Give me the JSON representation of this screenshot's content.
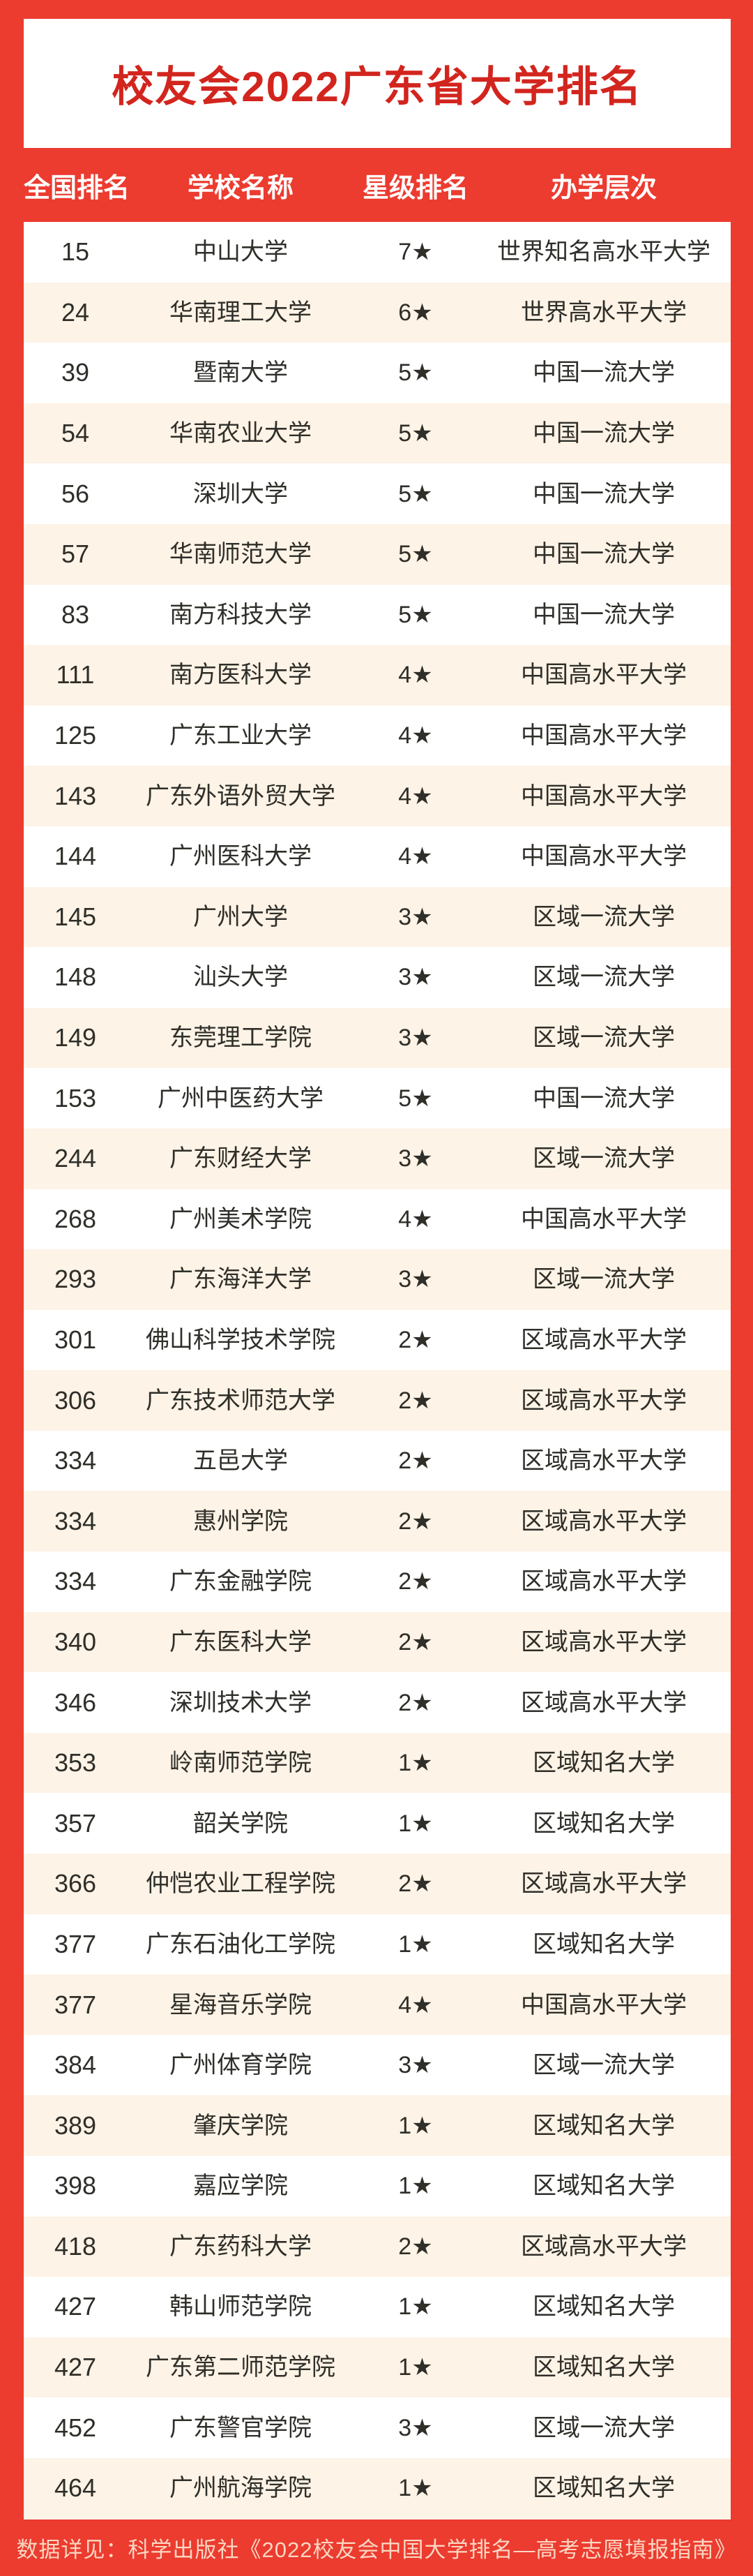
{
  "title": "校友会2022广东省大学排名",
  "table": {
    "headers": [
      "全国排名",
      "学校名称",
      "星级排名",
      "办学层次"
    ],
    "rows": [
      {
        "rank": "15",
        "school": "中山大学",
        "star": "7★",
        "level": "世界知名高水平大学"
      },
      {
        "rank": "24",
        "school": "华南理工大学",
        "star": "6★",
        "level": "世界高水平大学"
      },
      {
        "rank": "39",
        "school": "暨南大学",
        "star": "5★",
        "level": "中国一流大学"
      },
      {
        "rank": "54",
        "school": "华南农业大学",
        "star": "5★",
        "level": "中国一流大学"
      },
      {
        "rank": "56",
        "school": "深圳大学",
        "star": "5★",
        "level": "中国一流大学"
      },
      {
        "rank": "57",
        "school": "华南师范大学",
        "star": "5★",
        "level": "中国一流大学"
      },
      {
        "rank": "83",
        "school": "南方科技大学",
        "star": "5★",
        "level": "中国一流大学"
      },
      {
        "rank": "111",
        "school": "南方医科大学",
        "star": "4★",
        "level": "中国高水平大学"
      },
      {
        "rank": "125",
        "school": "广东工业大学",
        "star": "4★",
        "level": "中国高水平大学"
      },
      {
        "rank": "143",
        "school": "广东外语外贸大学",
        "star": "4★",
        "level": "中国高水平大学"
      },
      {
        "rank": "144",
        "school": "广州医科大学",
        "star": "4★",
        "level": "中国高水平大学"
      },
      {
        "rank": "145",
        "school": "广州大学",
        "star": "3★",
        "level": "区域一流大学"
      },
      {
        "rank": "148",
        "school": "汕头大学",
        "star": "3★",
        "level": "区域一流大学"
      },
      {
        "rank": "149",
        "school": "东莞理工学院",
        "star": "3★",
        "level": "区域一流大学"
      },
      {
        "rank": "153",
        "school": "广州中医药大学",
        "star": "5★",
        "level": "中国一流大学"
      },
      {
        "rank": "244",
        "school": "广东财经大学",
        "star": "3★",
        "level": "区域一流大学"
      },
      {
        "rank": "268",
        "school": "广州美术学院",
        "star": "4★",
        "level": "中国高水平大学"
      },
      {
        "rank": "293",
        "school": "广东海洋大学",
        "star": "3★",
        "level": "区域一流大学"
      },
      {
        "rank": "301",
        "school": "佛山科学技术学院",
        "star": "2★",
        "level": "区域高水平大学"
      },
      {
        "rank": "306",
        "school": "广东技术师范大学",
        "star": "2★",
        "level": "区域高水平大学"
      },
      {
        "rank": "334",
        "school": "五邑大学",
        "star": "2★",
        "level": "区域高水平大学"
      },
      {
        "rank": "334",
        "school": "惠州学院",
        "star": "2★",
        "level": "区域高水平大学"
      },
      {
        "rank": "334",
        "school": "广东金融学院",
        "star": "2★",
        "level": "区域高水平大学"
      },
      {
        "rank": "340",
        "school": "广东医科大学",
        "star": "2★",
        "level": "区域高水平大学"
      },
      {
        "rank": "346",
        "school": "深圳技术大学",
        "star": "2★",
        "level": "区域高水平大学"
      },
      {
        "rank": "353",
        "school": "岭南师范学院",
        "star": "1★",
        "level": "区域知名大学"
      },
      {
        "rank": "357",
        "school": "韶关学院",
        "star": "1★",
        "level": "区域知名大学"
      },
      {
        "rank": "366",
        "school": "仲恺农业工程学院",
        "star": "2★",
        "level": "区域高水平大学"
      },
      {
        "rank": "377",
        "school": "广东石油化工学院",
        "star": "1★",
        "level": "区域知名大学"
      },
      {
        "rank": "377",
        "school": "星海音乐学院",
        "star": "4★",
        "level": "中国高水平大学"
      },
      {
        "rank": "384",
        "school": "广州体育学院",
        "star": "3★",
        "level": "区域一流大学"
      },
      {
        "rank": "389",
        "school": "肇庆学院",
        "star": "1★",
        "level": "区域知名大学"
      },
      {
        "rank": "398",
        "school": "嘉应学院",
        "star": "1★",
        "level": "区域知名大学"
      },
      {
        "rank": "418",
        "school": "广东药科大学",
        "star": "2★",
        "level": "区域高水平大学"
      },
      {
        "rank": "427",
        "school": "韩山师范学院",
        "star": "1★",
        "level": "区域知名大学"
      },
      {
        "rank": "427",
        "school": "广东第二师范学院",
        "star": "1★",
        "level": "区域知名大学"
      },
      {
        "rank": "452",
        "school": "广东警官学院",
        "star": "3★",
        "level": "区域一流大学"
      },
      {
        "rank": "464",
        "school": "广州航海学院",
        "star": "1★",
        "level": "区域知名大学"
      }
    ]
  },
  "footer": "数据详见：科学出版社《2022校友会中国大学排名—高考志愿填报指南》",
  "colors": {
    "accent_red": "#ec3b2f",
    "title_red": "#d2251e",
    "row_alt_cream": "#fdf3e6",
    "row_text": "#2f2e29",
    "header_text": "#ffffff",
    "footer_text": "#fad7c3"
  }
}
